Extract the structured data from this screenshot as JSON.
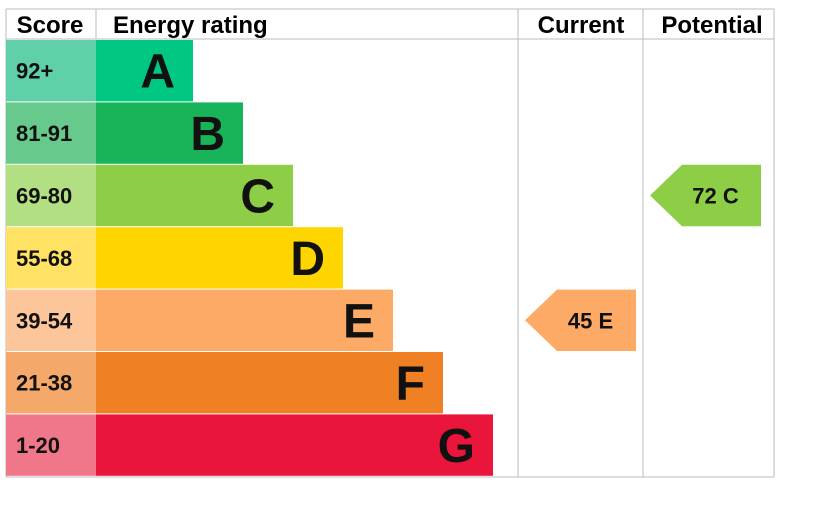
{
  "header": {
    "score_label": "Score",
    "rating_label": "Energy rating",
    "current_label": "Current",
    "potential_label": "Potential"
  },
  "chart_data": {
    "type": "bar",
    "bands": [
      {
        "letter": "A",
        "range": "92+",
        "color": "#00c781",
        "score_bg": "#5fd0a7"
      },
      {
        "letter": "B",
        "range": "81-91",
        "color": "#19b459",
        "score_bg": "#67c98b"
      },
      {
        "letter": "C",
        "range": "69-80",
        "color": "#8dce46",
        "score_bg": "#b2df82"
      },
      {
        "letter": "D",
        "range": "55-68",
        "color": "#ffd500",
        "score_bg": "#ffe163"
      },
      {
        "letter": "E",
        "range": "39-54",
        "color": "#fcaa65",
        "score_bg": "#fdc59a"
      },
      {
        "letter": "F",
        "range": "21-38",
        "color": "#ef8023",
        "score_bg": "#f4a86a"
      },
      {
        "letter": "G",
        "range": "1-20",
        "color": "#e9153b",
        "score_bg": "#f0778a"
      }
    ],
    "current": {
      "score": 45,
      "band": "E",
      "color": "#fcaa65",
      "label": "45  E"
    },
    "potential": {
      "score": 72,
      "band": "C",
      "color": "#8dce46",
      "label": "72  C"
    }
  }
}
